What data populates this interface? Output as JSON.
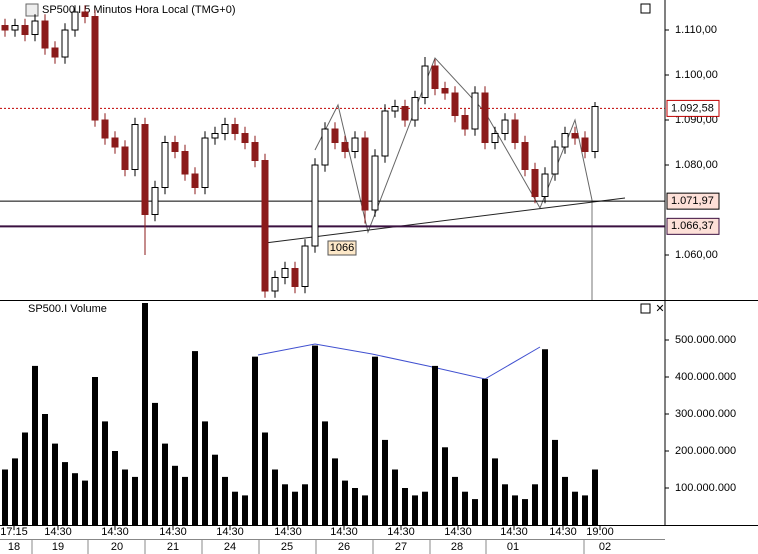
{
  "chart_data": [
    {
      "type": "candlestick",
      "title": "SP500.I 5 Minutos Hora Local (TMG+0)",
      "up_color": "#ffffff",
      "down_color": "#8b1a1a",
      "open": [
        1111,
        1110,
        1111,
        1109,
        1112,
        1106,
        1104,
        1110,
        1114,
        1113,
        1090,
        1086,
        1084,
        1079,
        1089,
        1069,
        1075,
        1085,
        1083,
        1078,
        1075,
        1086,
        1087,
        1089,
        1087,
        1085,
        1081,
        1052,
        1055,
        1057,
        1053,
        1062,
        1080,
        1088,
        1085,
        1083,
        1086,
        1070,
        1082,
        1092,
        1093,
        1090,
        1095,
        1102,
        1097,
        1096,
        1091,
        1088,
        1096,
        1085,
        1087,
        1090,
        1085,
        1079,
        1073,
        1078,
        1084,
        1087,
        1086,
        1083
      ],
      "high": [
        1112.5,
        1112.5,
        1112.5,
        1113.5,
        1113.5,
        1107.5,
        1111.5,
        1115.5,
        1115.5,
        1114.5,
        1091.5,
        1087.5,
        1085.5,
        1090.5,
        1090.5,
        1076.5,
        1086.5,
        1086.5,
        1084.5,
        1079.5,
        1087.5,
        1088.5,
        1090.5,
        1090.5,
        1088.5,
        1086.5,
        1082.5,
        1056.5,
        1058.5,
        1058.5,
        1063.5,
        1081.5,
        1089.5,
        1089.5,
        1086.5,
        1087.5,
        1087.5,
        1083.5,
        1093.5,
        1094.5,
        1094.5,
        1096.5,
        1104,
        1103.5,
        1098.5,
        1097.5,
        1092.5,
        1097.5,
        1097.5,
        1088.5,
        1091.5,
        1091.5,
        1086.5,
        1080.5,
        1079.5,
        1085.5,
        1088.5,
        1088.5,
        1087.5,
        1094
      ],
      "low": [
        1108.5,
        1108.5,
        1107.5,
        1107.5,
        1104.5,
        1102.5,
        1102.5,
        1108.5,
        1111.5,
        1088.5,
        1084.5,
        1082.5,
        1077.5,
        1077.5,
        1060,
        1067.5,
        1073.5,
        1081.5,
        1076.5,
        1073.5,
        1073.5,
        1084.5,
        1085.5,
        1085.5,
        1083.5,
        1079.5,
        1050.5,
        1050.5,
        1053.5,
        1051.5,
        1051.5,
        1060.5,
        1078.5,
        1083.5,
        1081.5,
        1081.5,
        1067,
        1068.5,
        1080.5,
        1090.5,
        1088.5,
        1088.5,
        1093.5,
        1095.5,
        1094.5,
        1089.5,
        1086.5,
        1086.5,
        1083.5,
        1083.5,
        1085.5,
        1083.5,
        1077.5,
        1071.5,
        1071.5,
        1076.5,
        1082.5,
        1084.5,
        1081.5,
        1081.5
      ],
      "close": [
        1110,
        1111,
        1109,
        1112,
        1106,
        1104,
        1110,
        1114,
        1113,
        1090,
        1086,
        1084,
        1079,
        1089,
        1069,
        1075,
        1085,
        1083,
        1078,
        1075,
        1086,
        1087,
        1089,
        1087,
        1085,
        1081,
        1052,
        1055,
        1057,
        1053,
        1062,
        1080,
        1088,
        1085,
        1083,
        1086,
        1070,
        1082,
        1092,
        1093,
        1090,
        1095,
        1102,
        1097,
        1096,
        1091,
        1088,
        1096,
        1085,
        1087,
        1090,
        1085,
        1079,
        1073,
        1078,
        1084,
        1087,
        1086,
        1083,
        1093
      ],
      "ylim": [
        1050,
        1116.67
      ],
      "yticks": [
        {
          "value": 1110,
          "label": "1.110,00"
        },
        {
          "value": 1100,
          "label": "1.100,00"
        },
        {
          "value": 1090,
          "label": "1.090,00"
        },
        {
          "value": 1080,
          "label": "1.080,00"
        },
        {
          "value": 1060,
          "label": "1.060,00"
        }
      ],
      "levels": [
        {
          "value": 1092.58,
          "label": "1.092,58",
          "color": "#c00000"
        },
        {
          "value": 1071.97,
          "label": "1.071,97",
          "color": "#000000"
        },
        {
          "value": 1066.37,
          "label": "1.066,37",
          "color": "#3a1040"
        }
      ],
      "annotation": "1066"
    },
    {
      "type": "bar",
      "title": "SP500.I Volume",
      "color": "#000000",
      "values": [
        150000000,
        180000000,
        250000000,
        430000000,
        300000000,
        220000000,
        170000000,
        140000000,
        120000000,
        400000000,
        280000000,
        200000000,
        150000000,
        130000000,
        600000000,
        330000000,
        220000000,
        160000000,
        130000000,
        470000000,
        280000000,
        190000000,
        130000000,
        90000000,
        80000000,
        455000000,
        250000000,
        150000000,
        110000000,
        90000000,
        110000000,
        485000000,
        280000000,
        180000000,
        120000000,
        100000000,
        80000000,
        455000000,
        230000000,
        150000000,
        100000000,
        80000000,
        90000000,
        430000000,
        210000000,
        130000000,
        90000000,
        70000000,
        395000000,
        180000000,
        110000000,
        80000000,
        70000000,
        110000000,
        475000000,
        230000000,
        130000000,
        90000000,
        80000000,
        150000000
      ],
      "ylim": [
        0,
        602700000
      ],
      "yticks": [
        {
          "value": 100000000,
          "label": "100.000.000"
        },
        {
          "value": 200000000,
          "label": "200.000.000"
        },
        {
          "value": 300000000,
          "label": "300.000.000"
        },
        {
          "value": 400000000,
          "label": "400.000.000"
        },
        {
          "value": 500000000,
          "label": "500.000.000"
        }
      ]
    }
  ],
  "time_axis": {
    "times": [
      "17:15",
      "14:30",
      "14:30",
      "14:30",
      "14:30",
      "14:30",
      "14:30",
      "14:30",
      "14:30",
      "14:30",
      "14:30",
      "19:00"
    ],
    "days": [
      "18",
      "19",
      "20",
      "21",
      "24",
      "25",
      "26",
      "27",
      "28",
      "01",
      "02"
    ]
  }
}
